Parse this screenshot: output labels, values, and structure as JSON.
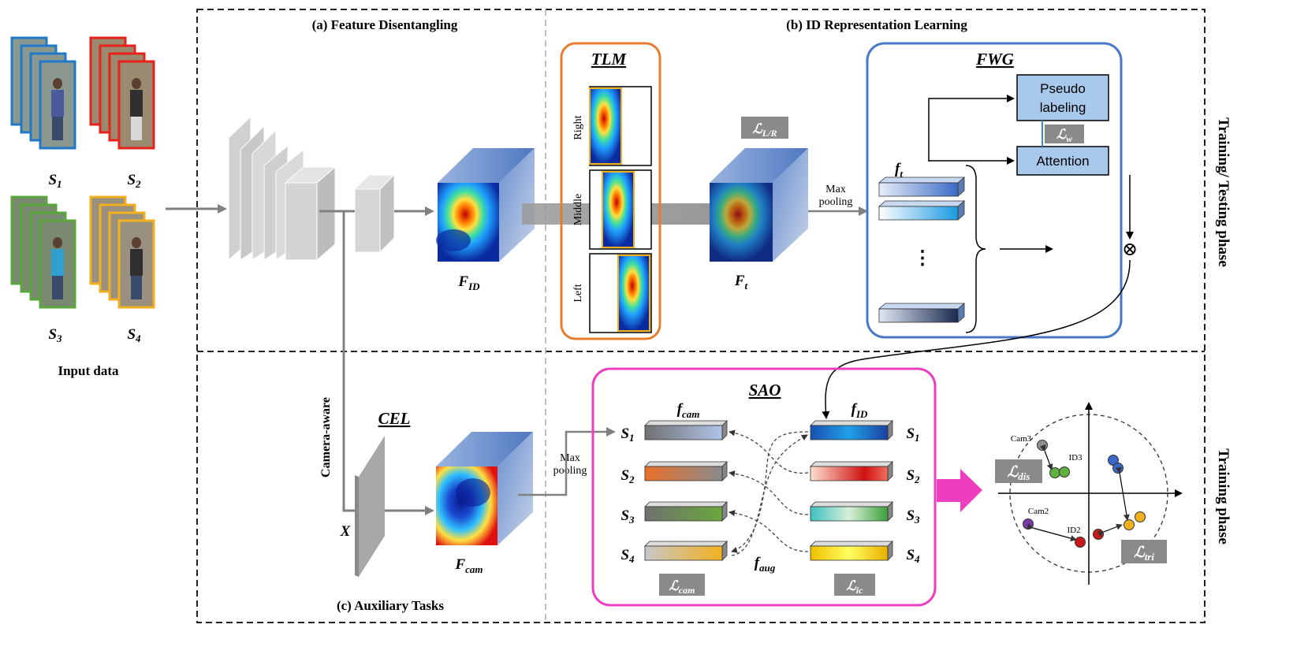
{
  "sections": {
    "a": "(a) Feature Disentangling",
    "b": "(b) ID Representation Learning",
    "c": "(c) Auxiliary Tasks"
  },
  "phases": {
    "train_test": "Training/ Testing phase",
    "train": "Training phase"
  },
  "input": {
    "title": "Input data",
    "sets": [
      {
        "label": "S",
        "sub": "1",
        "color": "#1f78c8"
      },
      {
        "label": "S",
        "sub": "2",
        "color": "#e8221b"
      },
      {
        "label": "S",
        "sub": "3",
        "color": "#5aa83c"
      },
      {
        "label": "S",
        "sub": "4",
        "color": "#f2b01e"
      }
    ]
  },
  "features": {
    "f_id_main": "F",
    "f_id_sub": "ID",
    "f_t_main": "F",
    "f_t_sub": "t",
    "f_cam_main": "F",
    "f_cam_sub": "cam",
    "x_label": "X"
  },
  "tlm": {
    "title": "TLM",
    "parts": [
      "Right",
      "Middle",
      "Left"
    ],
    "color": "#e87c2e"
  },
  "fwg": {
    "title": "FWG",
    "pseudo1": "Pseudo",
    "pseudo2": "labeling",
    "attention": "Attention",
    "vec_main": "f",
    "vec_sub": "t",
    "dots": "⋮",
    "color": "#4a78c8"
  },
  "sao": {
    "title": "SAO",
    "cam_main": "f",
    "cam_sub": "cam",
    "id_main": "f",
    "id_sub": "ID",
    "aug_main": "f",
    "aug_sub": "aug",
    "rows": [
      {
        "label": "S",
        "sub": "1"
      },
      {
        "label": "S",
        "sub": "2"
      },
      {
        "label": "S",
        "sub": "3"
      },
      {
        "label": "S",
        "sub": "4"
      }
    ],
    "color": "#ee3ec0"
  },
  "cel": {
    "title": "CEL",
    "side": "Camera-aware"
  },
  "pooling": {
    "line1": "Max",
    "line2": "pooling"
  },
  "losses": {
    "lr_main": "ℒ",
    "lr_sub": "L/R",
    "w_main": "ℒ",
    "w_sub": "w",
    "cam_main": "ℒ",
    "cam_sub": "cam",
    "ic_main": "ℒ",
    "ic_sub": "ic",
    "dis_main": "ℒ",
    "dis_sub": "dis",
    "tri_main": "ℒ",
    "tri_sub": "tri"
  },
  "scatter": {
    "cam3": "Cam3",
    "id3": "ID3",
    "cam2": "Cam2",
    "id2": "ID2"
  },
  "otimes": "⊗"
}
